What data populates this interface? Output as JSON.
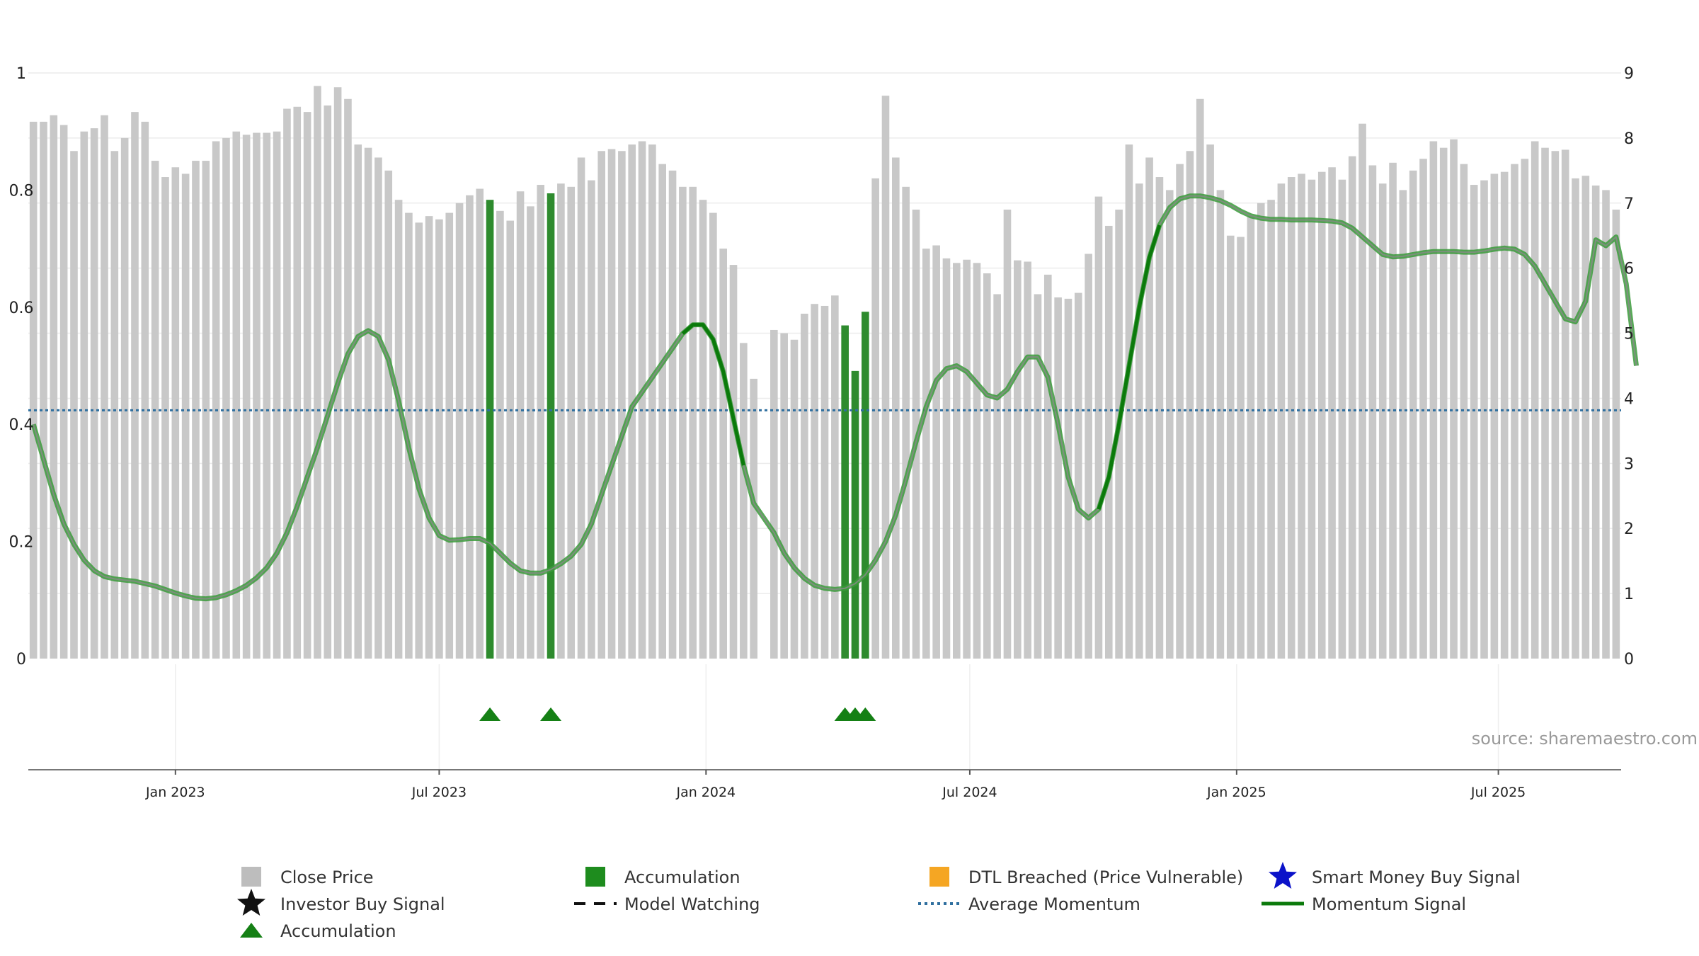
{
  "chart_data": {
    "type": "bar",
    "source_text": "source: sharemaestro.com",
    "left_axis": {
      "ylim": [
        0,
        1
      ],
      "ticks": [
        "0",
        "0.2",
        "0.4",
        "0.6",
        "0.8",
        "1"
      ],
      "tick_values": [
        0,
        0.2,
        0.4,
        0.6,
        0.8,
        1
      ]
    },
    "right_axis": {
      "ylim": [
        0,
        9
      ],
      "ticks": [
        "0",
        "1",
        "2",
        "3",
        "4",
        "5",
        "6",
        "7",
        "8",
        "9"
      ]
    },
    "x_axis": {
      "domain": [
        -14.5,
        142.5
      ],
      "ticks": [
        {
          "label": "Jan 2023",
          "week": 0
        },
        {
          "label": "Jul 2023",
          "week": 26
        },
        {
          "label": "Jan 2024",
          "week": 52.3
        },
        {
          "label": "Jul 2024",
          "week": 78.3
        },
        {
          "label": "Jan 2025",
          "week": 104.6
        },
        {
          "label": "Jul 2025",
          "week": 130.4
        }
      ]
    },
    "series": [
      {
        "name": "Close Price",
        "color": "#c8c8c8",
        "accent": "#2e8b2e",
        "start_week": -14,
        "values": [
          8.25,
          8.25,
          8.35,
          8.2,
          7.8,
          8.1,
          8.15,
          8.35,
          7.8,
          8.0,
          8.4,
          8.25,
          7.65,
          7.4,
          7.55,
          7.45,
          7.65,
          7.65,
          7.95,
          8.0,
          8.1,
          8.05,
          8.08,
          8.08,
          8.1,
          8.45,
          8.48,
          8.4,
          8.8,
          8.5,
          8.78,
          8.6,
          7.9,
          7.85,
          7.7,
          7.5,
          7.05,
          6.85,
          6.7,
          6.8,
          6.75,
          6.85,
          7.0,
          7.12,
          7.22,
          7.05,
          6.88,
          6.73,
          7.18,
          6.95,
          7.28,
          7.15,
          7.3,
          7.25,
          7.7,
          7.35,
          7.8,
          7.83,
          7.8,
          7.9,
          7.95,
          7.9,
          7.6,
          7.5,
          7.25,
          7.25,
          7.05,
          6.85,
          6.3,
          6.05,
          4.85,
          4.3,
          0,
          5.05,
          5.0,
          4.9,
          5.3,
          5.45,
          5.42,
          5.58,
          5.12,
          4.42,
          5.33,
          7.38,
          8.65,
          7.7,
          7.25,
          6.9,
          6.3,
          6.35,
          6.15,
          6.08,
          6.13,
          6.08,
          5.92,
          5.6,
          6.9,
          6.12,
          6.1,
          5.6,
          5.9,
          5.55,
          5.53,
          5.62,
          6.22,
          7.1,
          6.65,
          6.9,
          7.9,
          7.3,
          7.7,
          7.4,
          7.2,
          7.6,
          7.8,
          8.6,
          7.9,
          7.2,
          6.5,
          6.48,
          6.8,
          7.0,
          7.05,
          7.3,
          7.4,
          7.45,
          7.36,
          7.48,
          7.55,
          7.36,
          7.72,
          8.22,
          7.58,
          7.3,
          7.62,
          7.2,
          7.5,
          7.68,
          7.95,
          7.85,
          7.98,
          7.6,
          7.28,
          7.35,
          7.45,
          7.48,
          7.6,
          7.68,
          7.95,
          7.85,
          7.8,
          7.82,
          7.38,
          7.42,
          7.27,
          7.2,
          6.9
        ],
        "accumulation_weeks": [
          31,
          37,
          66,
          67,
          68
        ]
      },
      {
        "name": "Momentum Signal",
        "color": "#2e7d32",
        "emphasis": [
          [
            50,
            56
          ],
          [
            91,
            97
          ]
        ],
        "emphasis_color": "#0b7a0b",
        "points": [
          [
            -14,
            0.4
          ],
          [
            -13,
            0.34
          ],
          [
            -12,
            0.28
          ],
          [
            -11,
            0.23
          ],
          [
            -10,
            0.195
          ],
          [
            -9,
            0.168
          ],
          [
            -8,
            0.15
          ],
          [
            -7,
            0.14
          ],
          [
            -6,
            0.136
          ],
          [
            -5,
            0.134
          ],
          [
            -4,
            0.132
          ],
          [
            -3,
            0.128
          ],
          [
            -2,
            0.124
          ],
          [
            -1,
            0.118
          ],
          [
            0,
            0.112
          ],
          [
            1,
            0.107
          ],
          [
            2,
            0.103
          ],
          [
            3,
            0.102
          ],
          [
            4,
            0.104
          ],
          [
            5,
            0.109
          ],
          [
            6,
            0.116
          ],
          [
            7,
            0.125
          ],
          [
            8,
            0.138
          ],
          [
            9,
            0.155
          ],
          [
            10,
            0.18
          ],
          [
            11,
            0.215
          ],
          [
            12,
            0.26
          ],
          [
            13,
            0.31
          ],
          [
            14,
            0.36
          ],
          [
            15,
            0.415
          ],
          [
            16,
            0.47
          ],
          [
            17,
            0.52
          ],
          [
            18,
            0.55
          ],
          [
            19,
            0.56
          ],
          [
            20,
            0.55
          ],
          [
            21,
            0.51
          ],
          [
            22,
            0.44
          ],
          [
            23,
            0.36
          ],
          [
            24,
            0.29
          ],
          [
            25,
            0.24
          ],
          [
            26,
            0.21
          ],
          [
            27,
            0.202
          ],
          [
            28,
            0.203
          ],
          [
            29,
            0.205
          ],
          [
            30,
            0.205
          ],
          [
            31,
            0.197
          ],
          [
            32,
            0.18
          ],
          [
            33,
            0.163
          ],
          [
            34,
            0.15
          ],
          [
            35,
            0.146
          ],
          [
            36,
            0.146
          ],
          [
            37,
            0.152
          ],
          [
            38,
            0.162
          ],
          [
            39,
            0.175
          ],
          [
            40,
            0.195
          ],
          [
            41,
            0.23
          ],
          [
            42,
            0.28
          ],
          [
            43,
            0.33
          ],
          [
            44,
            0.38
          ],
          [
            45,
            0.43
          ],
          [
            46,
            0.455
          ],
          [
            47,
            0.48
          ],
          [
            48,
            0.505
          ],
          [
            49,
            0.53
          ],
          [
            50,
            0.555
          ],
          [
            51,
            0.57
          ],
          [
            52,
            0.57
          ],
          [
            53,
            0.545
          ],
          [
            54,
            0.49
          ],
          [
            55,
            0.41
          ],
          [
            56,
            0.33
          ],
          [
            57,
            0.265
          ],
          [
            58,
            0.24
          ],
          [
            59,
            0.215
          ],
          [
            60,
            0.18
          ],
          [
            61,
            0.155
          ],
          [
            62,
            0.137
          ],
          [
            63,
            0.125
          ],
          [
            64,
            0.12
          ],
          [
            65,
            0.118
          ],
          [
            66,
            0.12
          ],
          [
            67,
            0.128
          ],
          [
            68,
            0.143
          ],
          [
            69,
            0.168
          ],
          [
            70,
            0.2
          ],
          [
            71,
            0.245
          ],
          [
            72,
            0.305
          ],
          [
            73,
            0.37
          ],
          [
            74,
            0.43
          ],
          [
            75,
            0.475
          ],
          [
            76,
            0.495
          ],
          [
            77,
            0.5
          ],
          [
            78,
            0.49
          ],
          [
            79,
            0.47
          ],
          [
            80,
            0.45
          ],
          [
            81,
            0.445
          ],
          [
            82,
            0.46
          ],
          [
            83,
            0.49
          ],
          [
            84,
            0.515
          ],
          [
            85,
            0.515
          ],
          [
            86,
            0.48
          ],
          [
            87,
            0.4
          ],
          [
            88,
            0.31
          ],
          [
            89,
            0.255
          ],
          [
            90,
            0.24
          ],
          [
            91,
            0.255
          ],
          [
            92,
            0.31
          ],
          [
            93,
            0.4
          ],
          [
            94,
            0.5
          ],
          [
            95,
            0.6
          ],
          [
            96,
            0.685
          ],
          [
            97,
            0.74
          ],
          [
            98,
            0.77
          ],
          [
            99,
            0.785
          ],
          [
            100,
            0.79
          ],
          [
            101,
            0.79
          ],
          [
            102,
            0.787
          ],
          [
            103,
            0.782
          ],
          [
            104,
            0.774
          ],
          [
            105,
            0.764
          ],
          [
            106,
            0.756
          ],
          [
            107,
            0.752
          ],
          [
            108,
            0.75
          ],
          [
            109,
            0.75
          ],
          [
            110,
            0.749
          ],
          [
            111,
            0.749
          ],
          [
            112,
            0.749
          ],
          [
            113,
            0.748
          ],
          [
            114,
            0.747
          ],
          [
            115,
            0.744
          ],
          [
            116,
            0.735
          ],
          [
            117,
            0.72
          ],
          [
            118,
            0.705
          ],
          [
            119,
            0.69
          ],
          [
            120,
            0.686
          ],
          [
            121,
            0.687
          ],
          [
            122,
            0.69
          ],
          [
            123,
            0.693
          ],
          [
            124,
            0.695
          ],
          [
            125,
            0.695
          ],
          [
            126,
            0.695
          ],
          [
            127,
            0.694
          ],
          [
            128,
            0.694
          ],
          [
            129,
            0.696
          ],
          [
            130,
            0.699
          ],
          [
            131,
            0.701
          ],
          [
            132,
            0.699
          ],
          [
            133,
            0.69
          ],
          [
            134,
            0.67
          ],
          [
            135,
            0.64
          ],
          [
            136,
            0.61
          ],
          [
            137,
            0.58
          ],
          [
            138,
            0.575
          ],
          [
            139,
            0.61
          ],
          [
            140,
            0.715
          ],
          [
            141,
            0.705
          ],
          [
            142,
            0.72
          ],
          [
            143,
            0.64
          ],
          [
            144,
            0.5
          ]
        ]
      },
      {
        "name": "Average Momentum",
        "color": "#2f6f9f",
        "value": 0.424
      }
    ],
    "markers": [
      {
        "name": "Accumulation",
        "shape": "triangle",
        "color": "#158015",
        "weeks": [
          31,
          37,
          66,
          67,
          68
        ]
      }
    ],
    "legend": [
      {
        "label": "Close Price",
        "symbol": "square",
        "color": "#bdbdbd"
      },
      {
        "label": "Accumulation",
        "symbol": "square",
        "color": "#1e8c1e"
      },
      {
        "label": "DTL Breached (Price Vulnerable)",
        "symbol": "square",
        "color": "#f5a623"
      },
      {
        "label": "Smart Money Buy Signal",
        "symbol": "star",
        "color": "#0b12c9"
      },
      {
        "label": "Investor Buy Signal",
        "symbol": "star",
        "color": "#111111"
      },
      {
        "label": "Model Watching",
        "symbol": "dash",
        "color": "#111111"
      },
      {
        "label": "Average Momentum",
        "symbol": "dot",
        "color": "#2f6f9f"
      },
      {
        "label": "Momentum Signal",
        "symbol": "line",
        "color": "#0b7a0b"
      },
      {
        "label": "Accumulation",
        "symbol": "triangle",
        "color": "#158015"
      }
    ]
  }
}
